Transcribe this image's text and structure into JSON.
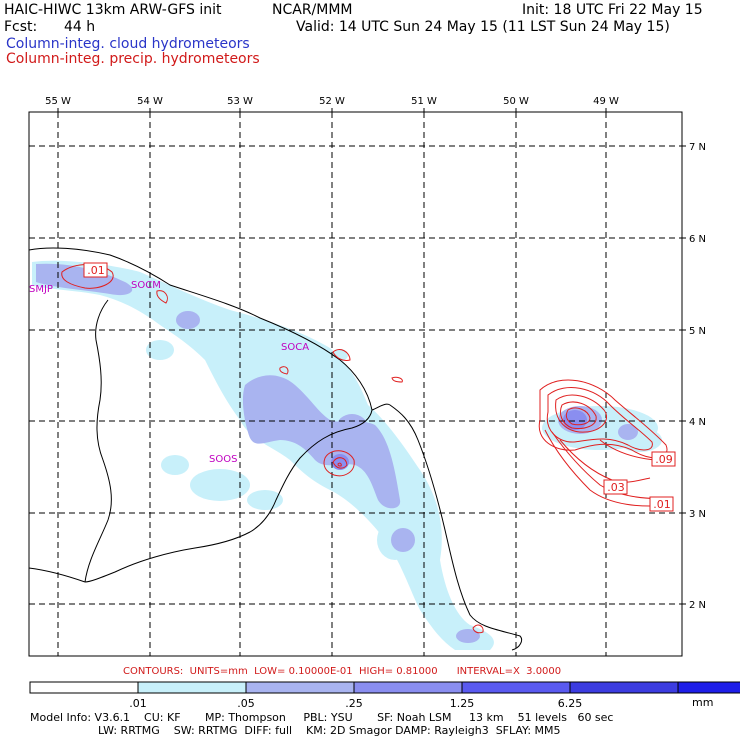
{
  "header": {
    "title": "HAIC-HIWC 13km ARW-GFS init",
    "org": "NCAR/MMM",
    "init": "Init: 18 UTC Fri 22 May 15",
    "fcst_label": "Fcst:",
    "fcst_value": "44 h",
    "valid": "Valid: 14 UTC Sun 24 May 15 (11 LST Sun 24 May 15)",
    "field_cloud": "Column-integ. cloud hydrometeors",
    "field_precip": "Column-integ. precip. hydrometeors"
  },
  "colors": {
    "cloud_text": "#2a35c8",
    "precip_text": "#d11a1a",
    "contour": "#e02020",
    "station": "#c000c0"
  },
  "map": {
    "lon_labels": [
      "55 W",
      "54 W",
      "53 W",
      "52 W",
      "51 W",
      "50 W",
      "49 W"
    ],
    "lat_labels": [
      "7 N",
      "6 N",
      "5 N",
      "4 N",
      "3 N",
      "2 N"
    ],
    "stations": [
      "SMJP",
      "SOCM",
      "SOCA",
      "SOOS"
    ],
    "contour_labels": [
      ".01",
      ".09",
      ".03",
      ".01"
    ]
  },
  "legend": {
    "contours_line": "CONTOURS:  UNITS=mm  LOW= 0.10000E-01  HIGH= 0.81000      INTERVAL=X  3.0000",
    "colors": [
      "#ffffff",
      "#c8f0fa",
      "#a9b4f0",
      "#8a8ef0",
      "#5a5af0",
      "#3c3ce0",
      "#1e1ee8"
    ],
    "thresholds": [
      ".01",
      ".05",
      ".25",
      "1.25",
      "6.25"
    ],
    "units": "mm"
  },
  "model_info": {
    "line1": "Model Info: V3.6.1    CU: KF       MP: Thompson     PBL: YSU       SF: Noah LSM     13 km    51 levels   60 sec",
    "line2": "LW: RRTMG    SW: RRTMG  DIFF: full    KM: 2D Smagor DAMP: Rayleigh3  SFLAY: MM5"
  }
}
